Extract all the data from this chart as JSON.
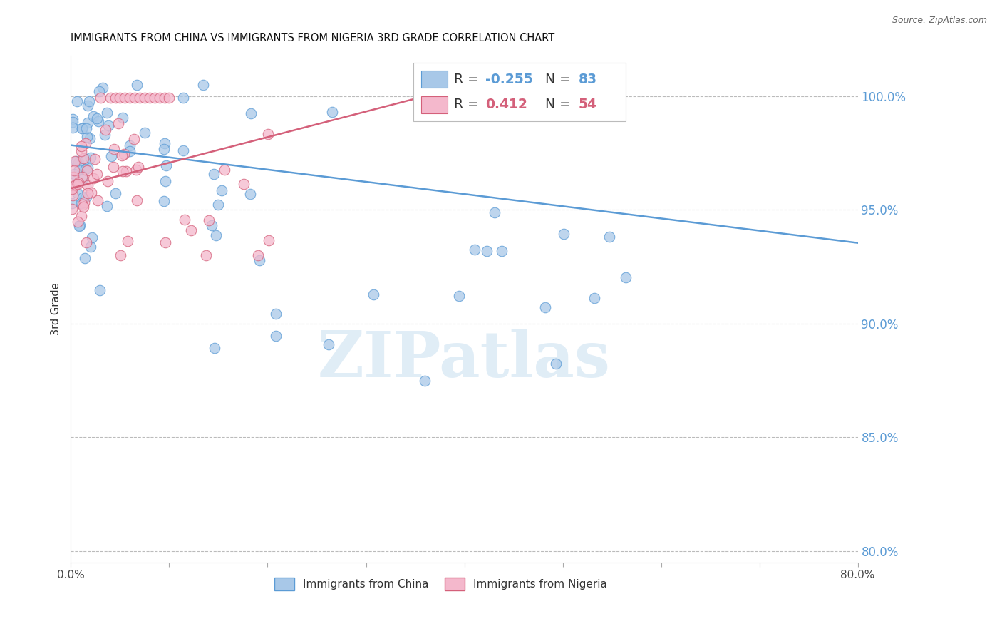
{
  "title": "IMMIGRANTS FROM CHINA VS IMMIGRANTS FROM NIGERIA 3RD GRADE CORRELATION CHART",
  "source": "Source: ZipAtlas.com",
  "ylabel": "3rd Grade",
  "ytick_labels": [
    "80.0%",
    "85.0%",
    "90.0%",
    "95.0%",
    "100.0%"
  ],
  "ytick_values": [
    0.8,
    0.85,
    0.9,
    0.95,
    1.0
  ],
  "xlim": [
    0.0,
    0.8
  ],
  "ylim": [
    0.795,
    1.018
  ],
  "legend_china": "Immigrants from China",
  "legend_nigeria": "Immigrants from Nigeria",
  "R_china": "-0.255",
  "N_china": "83",
  "R_nigeria": "0.412",
  "N_nigeria": "54",
  "china_color": "#a8c8e8",
  "china_color_dark": "#5b9bd5",
  "nigeria_color": "#f4b8cc",
  "nigeria_color_dark": "#d4607a",
  "watermark": "ZIPatlas",
  "background_color": "#ffffff",
  "grid_color": "#bbbbbb",
  "right_axis_color": "#5b9bd5",
  "china_trend_x": [
    0.0,
    0.8
  ],
  "china_trend_y": [
    0.9785,
    0.9355
  ],
  "nigeria_trend_x": [
    0.0,
    0.355
  ],
  "nigeria_trend_y": [
    0.9595,
    0.9995
  ]
}
